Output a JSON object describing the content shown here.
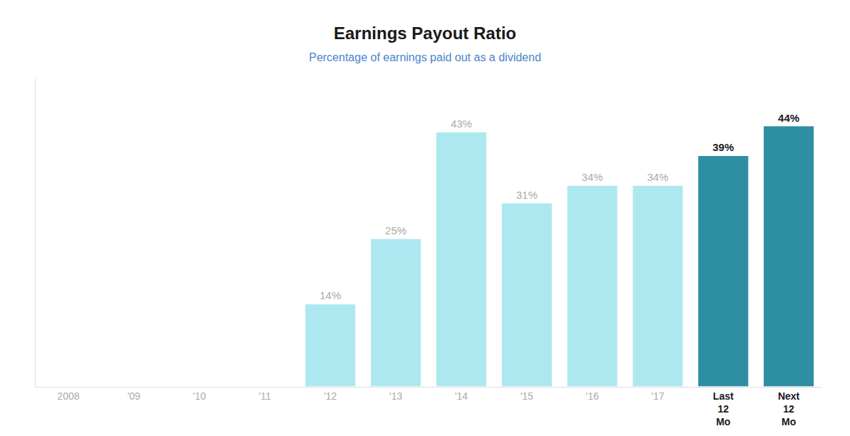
{
  "chart_data": {
    "type": "bar",
    "title": "Earnings Payout Ratio",
    "subtitle": "Percentage of earnings paid out as a dividend",
    "categories": [
      "2008",
      "'09",
      "'10",
      "'11",
      "'12",
      "'13",
      "'14",
      "'15",
      "'16",
      "'17",
      "Last\n12\nMo",
      "Next\n12\nMo"
    ],
    "values": [
      0,
      0,
      0,
      0,
      14,
      25,
      43,
      31,
      34,
      34,
      39,
      44
    ],
    "value_labels": [
      null,
      null,
      null,
      null,
      "14%",
      "25%",
      "43%",
      "31%",
      "34%",
      "34%",
      "39%",
      "44%"
    ],
    "data_labels": true,
    "colors": [
      "#ffffff",
      "#ffffff",
      "#ffffff",
      "#ffffff",
      "#ade8f0",
      "#ade8f0",
      "#ade8f0",
      "#ade8f0",
      "#ade8f0",
      "#ade8f0",
      "#2e8fa3",
      "#2e8fa3"
    ],
    "ylim": [
      0,
      52
    ],
    "grid": false,
    "tick_labels": "x"
  }
}
